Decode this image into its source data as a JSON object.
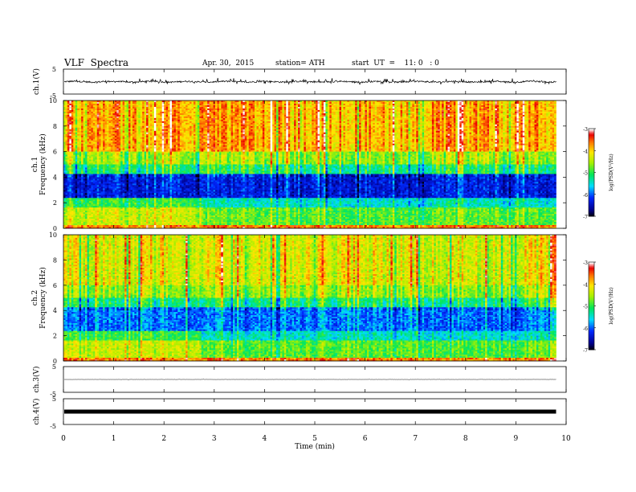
{
  "header": {
    "title": "VLF  Spectra",
    "date": "Apr. 30,  2015",
    "station": "station= ATH",
    "start": "start  UT  =    11: 0   : 0"
  },
  "chart_data": [
    {
      "type": "line",
      "panel": "ch1-waveform",
      "ylabel": "ch.1(V)",
      "ylim": [
        -5,
        5
      ],
      "yticks": [
        "5",
        "-5"
      ],
      "xlim": [
        0,
        10
      ],
      "series": [
        {
          "values_description": "noisy waveform near 0 V with spikes"
        }
      ]
    },
    {
      "type": "heatmap",
      "panel": "ch1-spectrogram",
      "ylabel_top": "ch.1",
      "ylabel": "Frequency  (kHz)",
      "ylim": [
        0,
        10
      ],
      "yticks": [
        "0",
        "2",
        "4",
        "6",
        "8",
        "10"
      ],
      "xlim": [
        0,
        10
      ],
      "colorbar": {
        "label": "log(PSD(V²/Hz)",
        "range": [
          -7,
          -3
        ],
        "ticks": [
          "-3",
          "-4",
          "-5",
          "-6",
          "-7"
        ]
      }
    },
    {
      "type": "heatmap",
      "panel": "ch2-spectrogram",
      "ylabel_top": "ch.2",
      "ylabel": "Frequency  (kHz)",
      "ylim": [
        0,
        10
      ],
      "yticks": [
        "0",
        "2",
        "4",
        "6",
        "8",
        "10"
      ],
      "xlim": [
        0,
        10
      ],
      "colorbar": {
        "label": "log(PSD(V²/Hz)",
        "range": [
          -7,
          -3
        ],
        "ticks": [
          "-3",
          "-4",
          "-5",
          "-6",
          "-7"
        ]
      }
    },
    {
      "type": "line",
      "panel": "ch3-waveform",
      "ylabel": "ch.3(V)",
      "ylim": [
        -5,
        5
      ],
      "yticks": [
        "5",
        "-5"
      ],
      "series": [
        {
          "values_description": "flat near 0 V"
        }
      ]
    },
    {
      "type": "line",
      "panel": "ch4-waveform",
      "ylabel": "ch.4(V)",
      "ylim": [
        -5,
        5
      ],
      "yticks": [
        "5",
        "-5"
      ],
      "series": [
        {
          "values_description": "dense flat band near 0 V"
        }
      ]
    }
  ],
  "xaxis": {
    "label": "Time  (min)",
    "range": [
      0,
      10
    ],
    "ticks": [
      "0",
      "1",
      "2",
      "3",
      "4",
      "5",
      "6",
      "7",
      "8",
      "9",
      "10"
    ]
  }
}
